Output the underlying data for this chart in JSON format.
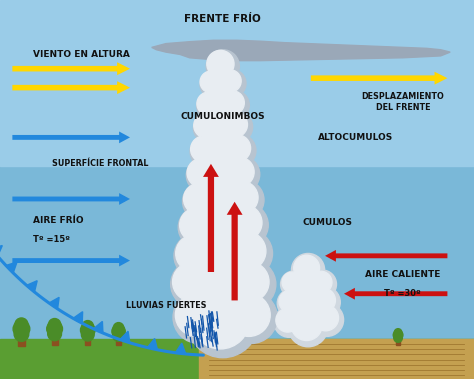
{
  "labels": {
    "frente_frio": "FRENTE FRÍO",
    "viento_altura": "VIENTO EN ALTURA",
    "desplazamiento": "DESPLAZAMIENTO\nDEL FRENTE",
    "superficie_frontal": "SUPERFÍCIE FRONTAL",
    "cumulonimbos": "CUMULONIMBOS",
    "altocumulos": "ALTOCUMULOS",
    "cumulos": "CUMULOS",
    "aire_frio_line1": "AIRE FRÍO",
    "aire_frio_line2": "Tº =15º",
    "lluvias_fuertes": "LLUVIAS FUERTES",
    "aire_caliente_line1": "AIRE CALIENTE",
    "aire_caliente_line2": "Tº =30º"
  },
  "colors": {
    "sky": "#8ec8e8",
    "sky_lower": "#7ab8d8",
    "text": "#111111",
    "yellow_arrow": "#FFD700",
    "blue_arrow": "#2288dd",
    "red_arrow": "#cc1111",
    "cloud_white": "#e8edf2",
    "cloud_mid": "#d0d8e0",
    "cloud_dark": "#b8c4d0",
    "anvil": "#9aa8b8",
    "front_line": "#2288dd",
    "rain": "#1155aa",
    "tree_trunk": "#8B5020",
    "tree_top": "#4a8c28",
    "ground_green": "#5a9e32",
    "ground_brown": "#c4a050",
    "field_line": "#a07830"
  },
  "figsize": [
    4.74,
    3.79
  ],
  "dpi": 100
}
